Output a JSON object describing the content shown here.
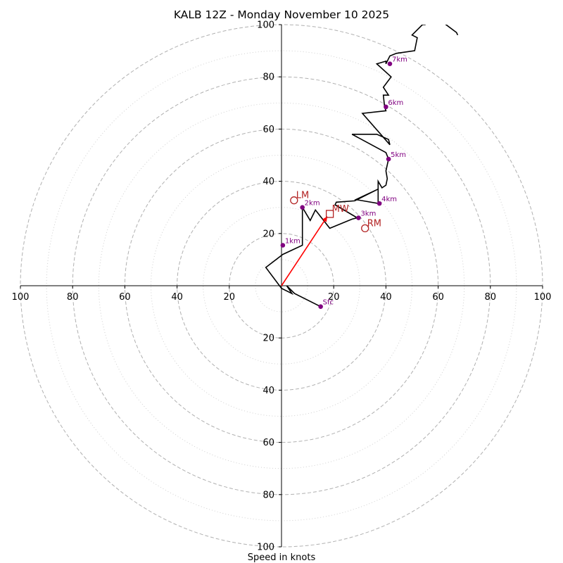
{
  "chart_data": {
    "type": "scatter",
    "title": "KALB 12Z - Monday November 10 2025",
    "xlabel": "Speed in knots",
    "x_range": [
      -100,
      100
    ],
    "y_range": [
      -100,
      100
    ],
    "tick_labels_x": [
      "100",
      "80",
      "60",
      "40",
      "20",
      "20",
      "40",
      "60",
      "80",
      "100"
    ],
    "tick_labels_y_top": [
      "100",
      "80",
      "60",
      "40",
      "20"
    ],
    "tick_labels_y_bottom": [
      "20",
      "40",
      "60",
      "80",
      "100"
    ],
    "rings_dashed": [
      20,
      40,
      60,
      80,
      100
    ],
    "rings_dotted": [
      10,
      30,
      50,
      70,
      90
    ],
    "hodograph": {
      "u": [
        15,
        5,
        2,
        4,
        0,
        -6,
        0.5,
        8,
        8,
        11,
        13,
        18.5,
        27,
        29,
        20.5,
        21,
        28,
        37,
        28.5,
        37,
        37,
        38.5,
        40,
        40.5,
        40,
        41,
        40,
        27,
        36.5,
        41,
        41.5,
        31,
        40,
        39.5,
        39,
        41,
        39,
        42,
        36.5,
        40,
        40,
        41.5,
        44,
        51,
        52,
        50,
        54,
        55,
        55.5,
        60,
        63,
        67,
        67.5
      ],
      "v": [
        -8,
        -3,
        0,
        -3,
        -1,
        7,
        12,
        15.5,
        30,
        25,
        29,
        22,
        25.5,
        26,
        31,
        32,
        32.5,
        37,
        33,
        31.5,
        40,
        37.5,
        38.5,
        41,
        44,
        48.5,
        51,
        58,
        58,
        56,
        54,
        66,
        67,
        68.5,
        73,
        73,
        76,
        80,
        85,
        86,
        85,
        88,
        89,
        90,
        95,
        96,
        100,
        100,
        102,
        102,
        100,
        97,
        96
      ]
    },
    "height_markers": [
      {
        "label": "Sfc",
        "u": 15,
        "v": -8
      },
      {
        "label": "1km",
        "u": 0.5,
        "v": 15.5
      },
      {
        "label": "2km",
        "u": 8,
        "v": 30
      },
      {
        "label": "3km",
        "u": 29.5,
        "v": 26
      },
      {
        "label": "4km",
        "u": 37.5,
        "v": 31.5
      },
      {
        "label": "5km",
        "u": 41,
        "v": 48.5
      },
      {
        "label": "6km",
        "u": 40,
        "v": 68.5
      },
      {
        "label": "7km",
        "u": 41.5,
        "v": 85
      }
    ],
    "storm_motion": [
      {
        "label": "LM",
        "u": 4.8,
        "v": 32.7,
        "marker": "circle"
      },
      {
        "label": "MW",
        "u": 18.5,
        "v": 27.5,
        "marker": "square"
      },
      {
        "label": "RM",
        "u": 32,
        "v": 22,
        "marker": "circle"
      }
    ],
    "mean_wind_vector": {
      "u": 17.5,
      "v": 26.5
    }
  },
  "colors": {
    "trace": "#000000",
    "height_marker": "#800080",
    "storm_motion": "#b22222",
    "vector": "#ff0000",
    "rings": "#b0b0b0",
    "axes": "#000000"
  }
}
